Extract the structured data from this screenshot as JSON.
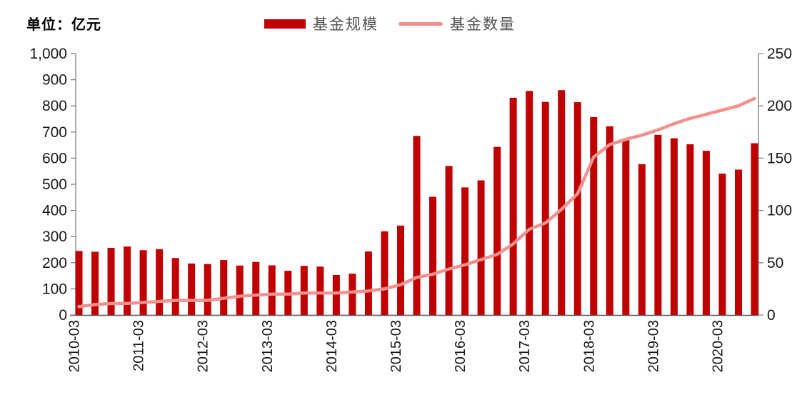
{
  "title": {
    "unit_label": "单位：亿元"
  },
  "legend": {
    "items": [
      {
        "label": "基金规模",
        "type": "bar",
        "color": "#C00000"
      },
      {
        "label": "基金数量",
        "type": "line",
        "color": "#F4908E"
      }
    ]
  },
  "colors": {
    "bar": "#C00000",
    "line": "#F4908E",
    "axis": "#7F7F7F",
    "tick_text": "#1a1a1a"
  },
  "chart_data": {
    "type": "bar",
    "subtype": "bar+line combo, dual y-axes",
    "categories": [
      "2010-03",
      "2010-06",
      "2010-09",
      "2010-12",
      "2011-03",
      "2011-06",
      "2011-09",
      "2011-12",
      "2012-03",
      "2012-06",
      "2012-09",
      "2012-12",
      "2013-03",
      "2013-06",
      "2013-09",
      "2013-12",
      "2014-03",
      "2014-06",
      "2014-09",
      "2014-12",
      "2015-03",
      "2015-06",
      "2015-09",
      "2015-12",
      "2016-03",
      "2016-06",
      "2016-09",
      "2016-12",
      "2017-03",
      "2017-06",
      "2017-09",
      "2017-12",
      "2018-03",
      "2018-06",
      "2018-09",
      "2018-12",
      "2019-03",
      "2019-06",
      "2019-09",
      "2019-12",
      "2020-03",
      "2020-06",
      "2020-09"
    ],
    "series": [
      {
        "name": "基金规模",
        "type": "bar",
        "axis": "left",
        "color": "#C00000",
        "values": [
          245,
          242,
          257,
          262,
          248,
          252,
          218,
          197,
          195,
          210,
          189,
          203,
          190,
          169,
          188,
          185,
          153,
          158,
          243,
          320,
          342,
          685,
          452,
          570,
          488,
          515,
          643,
          831,
          857,
          815,
          860,
          814,
          757,
          722,
          671,
          577,
          689,
          676,
          653,
          628,
          541,
          556,
          657
        ]
      },
      {
        "name": "基金数量",
        "type": "line",
        "axis": "right",
        "color": "#F4908E",
        "values": [
          8,
          10,
          11,
          11,
          12,
          13,
          14,
          14,
          14,
          16,
          18,
          19,
          20,
          20,
          21,
          21,
          21,
          22,
          23,
          25,
          29,
          36,
          39,
          44,
          48,
          53,
          58,
          68,
          82,
          88,
          101,
          116,
          151,
          163,
          168,
          172,
          177,
          183,
          188,
          192,
          196,
          200,
          207
        ]
      }
    ],
    "left_axis": {
      "min": 0,
      "max": 1000,
      "step": 100,
      "tick_labels": [
        "0",
        "100",
        "200",
        "300",
        "400",
        "500",
        "600",
        "700",
        "800",
        "900",
        "1,000"
      ]
    },
    "right_axis": {
      "min": 0,
      "max": 250,
      "step": 50,
      "tick_labels": [
        "0",
        "50",
        "100",
        "150",
        "200",
        "250"
      ]
    },
    "x_tick_every": 4,
    "x_tick_labels": [
      "2010-03",
      "2011-03",
      "2012-03",
      "2013-03",
      "2014-03",
      "2015-03",
      "2016-03",
      "2017-03",
      "2018-03",
      "2019-03",
      "2020-03"
    ],
    "grid": false,
    "legend_position": "top-center"
  }
}
